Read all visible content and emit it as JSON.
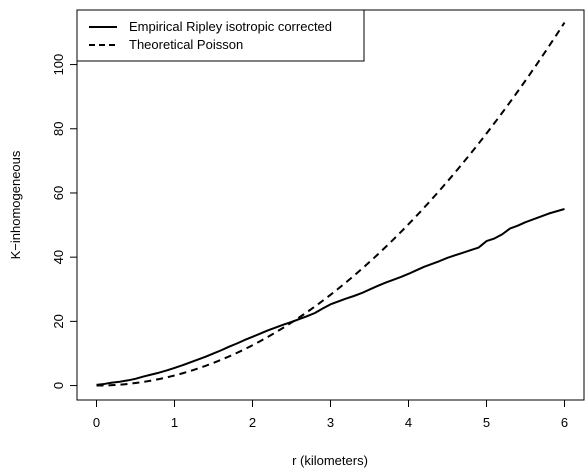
{
  "chart_data": {
    "type": "line",
    "title": "",
    "xlabel": "r (kilometers)",
    "ylabel": "K−inhomogeneous",
    "xlim": [
      -0.25,
      6.25
    ],
    "ylim": [
      -4.5,
      117
    ],
    "x_ticks": [
      0,
      1,
      2,
      3,
      4,
      5,
      6
    ],
    "y_ticks": [
      0,
      20,
      40,
      60,
      80,
      100
    ],
    "grid": false,
    "legend_position": "top-left",
    "series": [
      {
        "name": "Empirical Ripley isotropic corrected",
        "style": "solid",
        "color": "#000000",
        "x": [
          0.0,
          0.1,
          0.2,
          0.3,
          0.4,
          0.5,
          0.6,
          0.7,
          0.8,
          0.9,
          1.0,
          1.1,
          1.2,
          1.3,
          1.4,
          1.5,
          1.6,
          1.7,
          1.8,
          1.9,
          2.0,
          2.1,
          2.2,
          2.3,
          2.4,
          2.5,
          2.6,
          2.7,
          2.8,
          2.9,
          3.0,
          3.1,
          3.2,
          3.3,
          3.4,
          3.5,
          3.6,
          3.7,
          3.8,
          3.9,
          4.0,
          4.1,
          4.2,
          4.3,
          4.4,
          4.5,
          4.6,
          4.7,
          4.8,
          4.9,
          4.95,
          5.0,
          5.1,
          5.2,
          5.3,
          5.4,
          5.5,
          5.6,
          5.7,
          5.8,
          5.9,
          6.0
        ],
        "y": [
          0.2,
          0.5,
          0.9,
          1.2,
          1.6,
          2.1,
          2.8,
          3.4,
          4.0,
          4.7,
          5.5,
          6.3,
          7.2,
          8.1,
          9.0,
          10.0,
          11.0,
          12.1,
          13.1,
          14.2,
          15.2,
          16.2,
          17.2,
          18.1,
          19.0,
          19.8,
          20.7,
          21.6,
          22.6,
          24.0,
          25.3,
          26.2,
          27.1,
          27.9,
          28.8,
          29.9,
          31.0,
          32.0,
          32.9,
          33.8,
          34.8,
          35.9,
          37.0,
          37.9,
          38.8,
          39.8,
          40.6,
          41.4,
          42.2,
          43.0,
          44.0,
          45.0,
          45.8,
          47.1,
          48.9,
          49.8,
          50.9,
          51.8,
          52.7,
          53.6,
          54.3,
          55.0
        ]
      },
      {
        "name": "Theoretical Poisson",
        "style": "dashed",
        "color": "#000000",
        "formula": "pi * r^2",
        "x_range": [
          0,
          6
        ]
      }
    ]
  }
}
